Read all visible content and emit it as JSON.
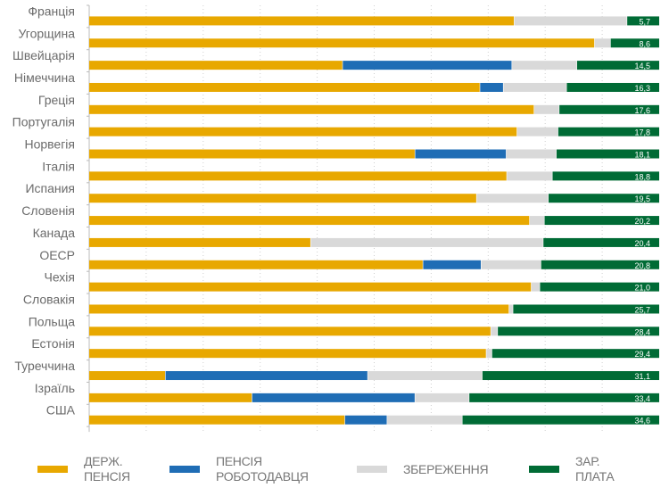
{
  "chart_data": {
    "type": "bar",
    "orientation": "horizontal",
    "stacked": true,
    "xlim": [
      0,
      100
    ],
    "grid": true,
    "legend_position": "bottom",
    "categories": [
      "Франція",
      "Угорщина",
      "Швейцарія",
      "Німеччина",
      "Греція",
      "Португалія",
      "Норвегія",
      "Італія",
      "Испания",
      "Словенія",
      "Канада",
      "ОЕСР",
      "Чехія",
      "Словакія",
      "Польща",
      "Естонія",
      "Туреччина",
      "Ізраїль",
      "США"
    ],
    "series": [
      {
        "name": "ДЕРЖ. ПЕНСІЯ",
        "color": "#E8A800",
        "values": [
          74.5,
          88.6,
          44.4,
          68.5,
          78.0,
          75.0,
          57.1,
          73.2,
          67.9,
          77.2,
          38.8,
          58.5,
          77.5,
          73.6,
          70.4,
          69.6,
          13.3,
          28.5,
          44.8
        ]
      },
      {
        "name": "ПЕНСІЯ РОБОТОДАВЦЯ",
        "color": "#1F6DB5",
        "values": [
          0,
          0,
          29.7,
          4.1,
          0,
          0,
          16.0,
          0,
          0,
          0,
          0,
          10.2,
          0,
          0,
          0,
          0,
          35.5,
          28.6,
          7.4
        ]
      },
      {
        "name": "ЗБЕРЕЖЕННЯ",
        "color": "#D9D9D9",
        "values": [
          19.8,
          2.8,
          11.4,
          11.1,
          4.4,
          7.2,
          8.8,
          8.0,
          12.6,
          2.6,
          40.8,
          10.5,
          1.5,
          0.7,
          1.2,
          1.0,
          20.1,
          9.5,
          13.2
        ]
      },
      {
        "name": "ЗАР. ПЛАТА",
        "color": "#006B35",
        "values": [
          5.7,
          8.6,
          14.5,
          16.3,
          17.6,
          17.8,
          18.1,
          18.8,
          19.5,
          20.2,
          20.4,
          20.8,
          21.0,
          25.7,
          28.4,
          29.4,
          31.1,
          33.4,
          34.6
        ]
      }
    ],
    "data_labels": [
      "5,7",
      "8,6",
      "14,5",
      "16,3",
      "17,6",
      "17,8",
      "18,1",
      "18,8",
      "19,5",
      "20,2",
      "20,4",
      "20,8",
      "21,0",
      "25,7",
      "28,4",
      "29,4",
      "31,1",
      "33,4",
      "34,6"
    ]
  },
  "legend": [
    {
      "line1": "ДЕРЖ.",
      "line2": "ПЕНСІЯ",
      "color": "#E8A800"
    },
    {
      "line1": "ПЕНСІЯ",
      "line2": "РОБОТОДАВЦЯ",
      "color": "#1F6DB5"
    },
    {
      "line1": "ЗБЕРЕЖЕННЯ",
      "line2": "",
      "color": "#D9D9D9"
    },
    {
      "line1": "ЗАР.",
      "line2": "ПЛАТА",
      "color": "#006B35"
    }
  ]
}
